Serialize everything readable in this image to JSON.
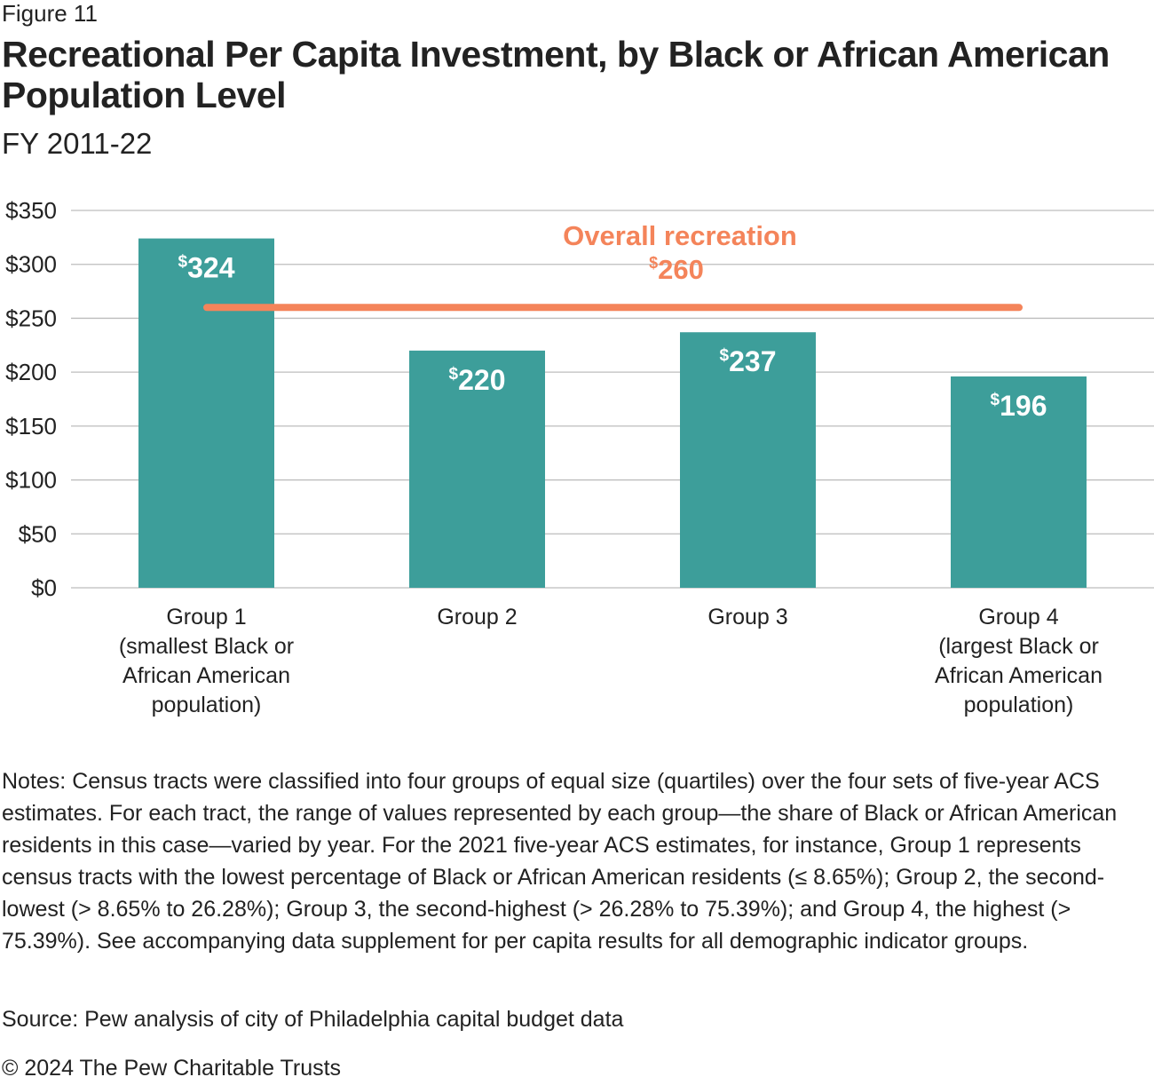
{
  "figure_label": "Figure 11",
  "chart_data": {
    "type": "bar",
    "title": "Recreational Per Capita Investment, by Black or African American Population Level",
    "subtitle": "FY 2011-22",
    "categories": [
      "Group 1\n(smallest Black or\nAfrican American\npopulation)",
      "Group 2",
      "Group 3",
      "Group 4\n(largest Black or\nAfrican American\npopulation)"
    ],
    "values": [
      324,
      220,
      237,
      196
    ],
    "data_labels": [
      "324",
      "220",
      "237",
      "196"
    ],
    "ylim": [
      0,
      350
    ],
    "yticks": [
      0,
      50,
      100,
      150,
      200,
      250,
      300,
      350
    ],
    "ytick_labels": [
      "$0",
      "$50",
      "$100",
      "$150",
      "$200",
      "$250",
      "$300",
      "$350"
    ],
    "grid": true,
    "reference_line": {
      "label": "Overall recreation",
      "value": 260,
      "value_label": "260"
    },
    "colors": {
      "bar": "#3d9e9a",
      "reference": "#f4845a",
      "grid": "#bdbdbd"
    }
  },
  "notes": "Notes: Census tracts were classified into four groups of equal size (quartiles) over the four sets of five-year ACS estimates. For each tract, the range of values represented by each group—the share of Black or African American residents in this case—varied by year. For the 2021 five-year ACS estimates, for instance, Group 1 represents census tracts with the lowest percentage of Black or African American residents (≤ 8.65%); Group 2, the second-lowest (> 8.65% to 26.28%); Group 3, the second-highest (> 26.28% to 75.39%); and Group 4, the highest (> 75.39%). See accompanying data supplement for per capita results for all demographic indicator groups.",
  "source": "Source: Pew analysis of city of Philadelphia capital budget data",
  "copyright": "© 2024 The Pew Charitable Trusts"
}
